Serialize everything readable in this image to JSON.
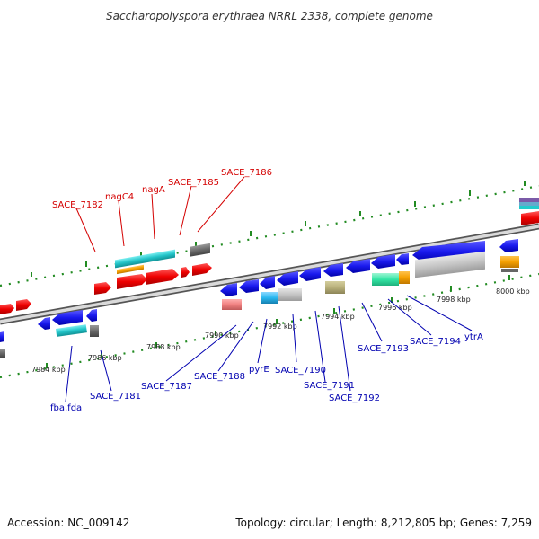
{
  "title": "Saccharopolyspora erythraea NRRL 2338, complete genome",
  "footer": {
    "accession": "Accession: NC_009142",
    "summary": "Topology: circular; Length: 8,212,805 bp; Genes: 7,259"
  },
  "colors": {
    "backbone": "#a0a0a0",
    "tick": "#228b22",
    "gene_red": "#ee0000",
    "gene_blue": "#1a1aee",
    "label_red": "#d40000",
    "label_blue": "#0000b0",
    "cyan": "#22c4c8",
    "orange": "#f5a000",
    "gray": "#8c8c8c",
    "dark_gray": "#666666",
    "light_gray": "#c8c8c8",
    "olive": "#b8b07a",
    "pink": "#f08080",
    "mint": "#33e6a5",
    "sky": "#2ab8f0"
  },
  "kbp_labels": [
    "7984 kbp",
    "7986 kbp",
    "7988 kbp",
    "7990 kbp",
    "7992 kbp",
    "7994 kbp",
    "7996 kbp",
    "7998 kbp",
    "8000 kbp"
  ],
  "top_gene_labels": [
    "SACE_7182",
    "nagC4",
    "nagA",
    "SACE_7185",
    "SACE_7186"
  ],
  "bottom_gene_labels": [
    "fba,fda",
    "SACE_7181",
    "SACE_7187",
    "SACE_7188",
    "pyrE",
    "SACE_7190",
    "SACE_7191",
    "SACE_7192",
    "SACE_7193",
    "SACE_7194",
    "ytrA"
  ]
}
